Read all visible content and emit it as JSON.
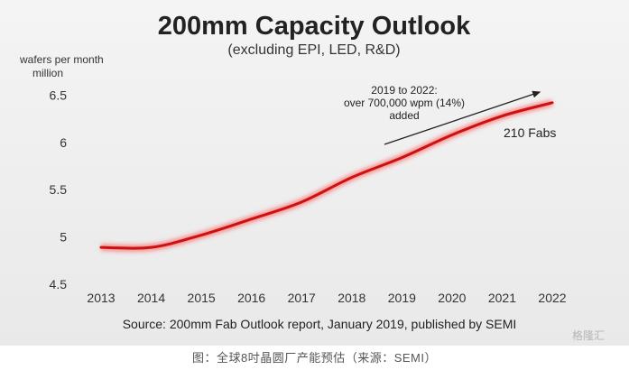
{
  "chart_data": {
    "type": "line",
    "title": "200mm Capacity Outlook",
    "subtitle": "(excluding EPI, LED, R&D)",
    "ylabel_lines": [
      "wafers per month",
      "million"
    ],
    "x": [
      2013,
      2014,
      2015,
      2016,
      2017,
      2018,
      2019,
      2020,
      2021,
      2022
    ],
    "series": [
      {
        "name": "200mm capacity",
        "values": [
          4.89,
          4.89,
          5.02,
          5.19,
          5.37,
          5.63,
          5.84,
          6.08,
          6.28,
          6.42
        ]
      }
    ],
    "ylim": [
      4.5,
      6.6
    ],
    "yticks": [
      4.5,
      5,
      5.5,
      6,
      6.5
    ],
    "ytick_labels": [
      "4.5",
      "5",
      "5.5",
      "6",
      "6.5"
    ],
    "xtick_labels": [
      "2013",
      "2014",
      "2015",
      "2016",
      "2017",
      "2018",
      "2019",
      "2020",
      "2021",
      "2022"
    ],
    "annotation_lines": [
      "2019 to 2022:",
      "over 700,000 wpm (14%)",
      "added"
    ],
    "end_label": "210 Fabs",
    "source": "Source: 200mm Fab Outlook report, January 2019, published by SEMI",
    "line_color": "#cc1111",
    "grid": false
  },
  "watermark": "格隆汇",
  "caption": "图：全球8吋晶圆厂产能预估（来源：SEMI）"
}
